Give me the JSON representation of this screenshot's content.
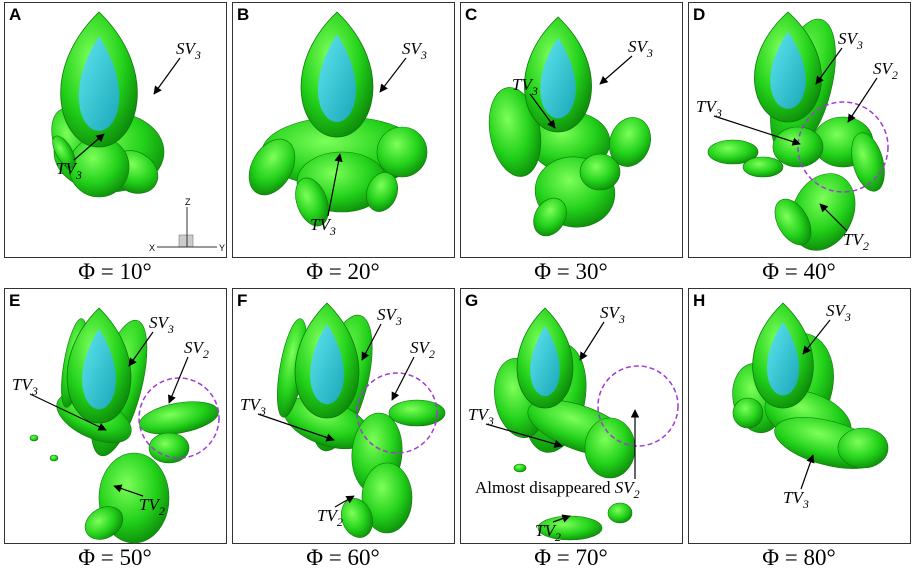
{
  "panels": [
    {
      "letter": "A",
      "caption": "Φ = 10°",
      "annotations": [
        {
          "text": "SV",
          "sub": "3"
        },
        {
          "text": "TV",
          "sub": "3"
        }
      ],
      "axes": [
        "Z",
        "X",
        "Y"
      ]
    },
    {
      "letter": "B",
      "caption": "Φ = 20°",
      "annotations": [
        {
          "text": "SV",
          "sub": "3"
        },
        {
          "text": "TV",
          "sub": "3"
        }
      ]
    },
    {
      "letter": "C",
      "caption": "Φ = 30°",
      "annotations": [
        {
          "text": "SV",
          "sub": "3"
        },
        {
          "text": "TV",
          "sub": "3"
        }
      ]
    },
    {
      "letter": "D",
      "caption": "Φ = 40°",
      "annotations": [
        {
          "text": "SV",
          "sub": "3"
        },
        {
          "text": "SV",
          "sub": "2"
        },
        {
          "text": "TV",
          "sub": "3"
        },
        {
          "text": "TV",
          "sub": "2"
        }
      ]
    },
    {
      "letter": "E",
      "caption": "Φ = 50°",
      "annotations": [
        {
          "text": "SV",
          "sub": "3"
        },
        {
          "text": "SV",
          "sub": "2"
        },
        {
          "text": "TV",
          "sub": "3"
        },
        {
          "text": "TV",
          "sub": "2"
        }
      ]
    },
    {
      "letter": "F",
      "caption": "Φ = 60°",
      "annotations": [
        {
          "text": "SV",
          "sub": "3"
        },
        {
          "text": "SV",
          "sub": "2"
        },
        {
          "text": "TV",
          "sub": "3"
        },
        {
          "text": "TV",
          "sub": "2"
        }
      ]
    },
    {
      "letter": "G",
      "caption": "Φ = 70°",
      "annotations": [
        {
          "text": "SV",
          "sub": "3"
        },
        {
          "text": "TV",
          "sub": "3"
        },
        {
          "prefix": "Almost disappeared ",
          "text": "SV",
          "sub": "2"
        },
        {
          "text": "TV",
          "sub": "2"
        }
      ]
    },
    {
      "letter": "H",
      "caption": "Φ = 80°",
      "annotations": [
        {
          "text": "SV",
          "sub": "3"
        },
        {
          "text": "TV",
          "sub": "3"
        }
      ]
    }
  ]
}
